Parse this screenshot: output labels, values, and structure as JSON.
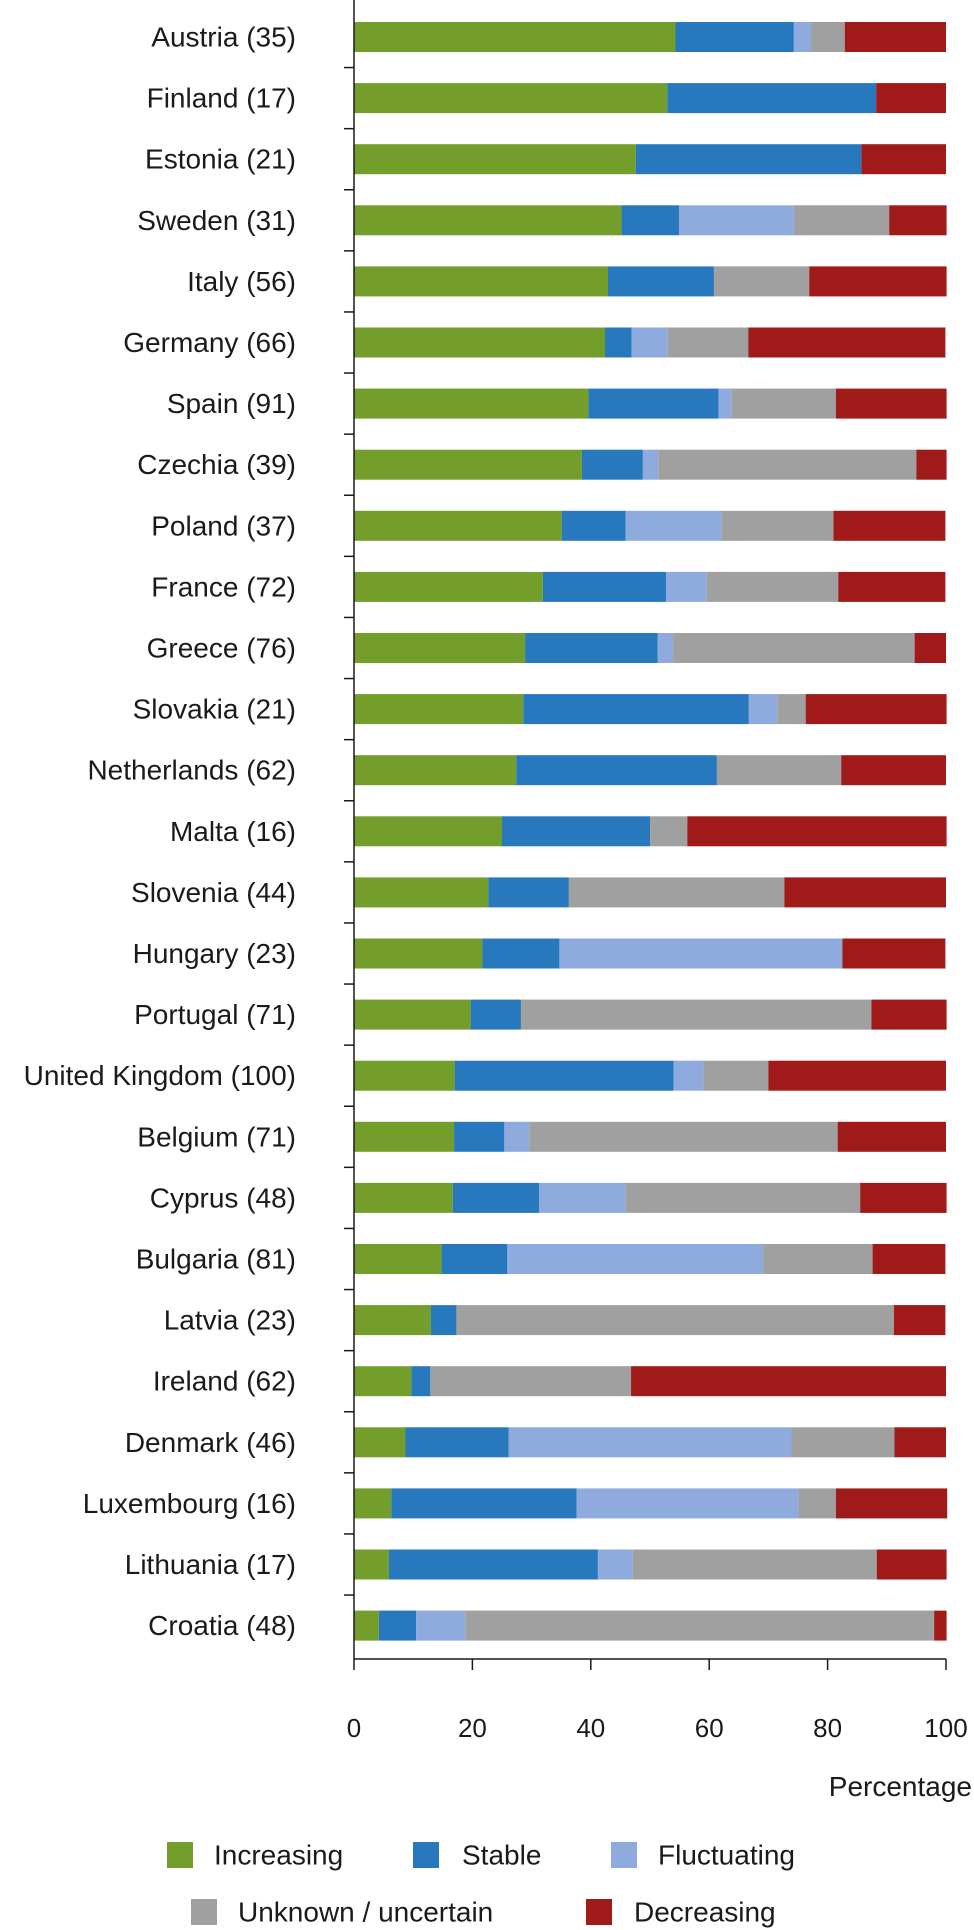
{
  "chart_data": {
    "type": "bar",
    "orientation": "horizontal",
    "stacked": true,
    "categories": [
      "Austria (35)",
      "Finland (17)",
      "Estonia (21)",
      "Sweden (31)",
      "Italy (56)",
      "Germany (66)",
      "Spain (91)",
      "Czechia (39)",
      "Poland (37)",
      "France (72)",
      "Greece (76)",
      "Slovakia (21)",
      "Netherlands (62)",
      "Malta (16)",
      "Slovenia (44)",
      "Hungary (23)",
      "Portugal (71)",
      "United Kingdom (100)",
      "Belgium (71)",
      "Cyprus (48)",
      "Bulgaria (81)",
      "Latvia (23)",
      "Ireland (62)",
      "Denmark (46)",
      "Luxembourg (16)",
      "Lithuania (17)",
      "Croatia (48)"
    ],
    "series": [
      {
        "name": "Increasing",
        "color": "#739E2B",
        "values": [
          54.3,
          52.9,
          47.6,
          45.2,
          42.9,
          42.4,
          39.6,
          38.5,
          35.1,
          31.9,
          28.9,
          28.6,
          27.4,
          25.0,
          22.7,
          21.7,
          19.7,
          17.0,
          16.9,
          16.7,
          14.8,
          13.0,
          9.7,
          8.7,
          6.3,
          5.9,
          4.2
        ]
      },
      {
        "name": "Stable",
        "color": "#2878BE",
        "values": [
          20.0,
          35.3,
          38.1,
          9.7,
          17.9,
          4.5,
          22.0,
          10.3,
          10.8,
          20.8,
          22.4,
          38.1,
          33.9,
          25.0,
          13.6,
          13.0,
          8.5,
          37.0,
          8.5,
          14.6,
          11.1,
          4.3,
          3.2,
          17.4,
          31.3,
          35.3,
          6.3
        ]
      },
      {
        "name": "Fluctuating",
        "color": "#8FAADC",
        "values": [
          2.9,
          0.0,
          0.0,
          19.4,
          0.0,
          6.1,
          2.2,
          2.6,
          16.2,
          6.9,
          2.6,
          4.8,
          0.0,
          0.0,
          0.0,
          47.8,
          0.0,
          5.0,
          4.2,
          14.6,
          43.2,
          0.0,
          0.0,
          47.8,
          37.5,
          5.9,
          8.3
        ]
      },
      {
        "name": "Unknown / uncertain",
        "color": "#A0A0A0",
        "values": [
          5.7,
          0.0,
          0.0,
          16.1,
          16.1,
          13.6,
          17.6,
          43.6,
          18.9,
          22.2,
          40.8,
          4.8,
          21.0,
          6.3,
          36.4,
          0.0,
          59.2,
          11.0,
          52.1,
          39.6,
          18.5,
          73.9,
          33.9,
          17.4,
          6.3,
          41.2,
          79.2
        ]
      },
      {
        "name": "Decreasing",
        "color": "#A01A1A",
        "values": [
          17.1,
          11.8,
          14.3,
          9.7,
          23.2,
          33.3,
          18.7,
          5.1,
          18.9,
          18.1,
          5.3,
          23.8,
          17.7,
          43.8,
          27.3,
          17.4,
          12.7,
          30.0,
          18.3,
          14.6,
          12.3,
          8.7,
          53.2,
          8.7,
          18.8,
          11.8,
          2.1
        ]
      }
    ],
    "xlim": [
      0,
      100
    ],
    "xticks": [
      "0",
      "20",
      "40",
      "60",
      "80",
      "100"
    ],
    "xlabel": "Percentage",
    "ylabel": "",
    "title": "",
    "grid": false,
    "legend": {
      "position": "bottom",
      "rows": [
        [
          "Increasing",
          "Stable",
          "Fluctuating"
        ],
        [
          "Unknown / uncertain",
          "Decreasing"
        ]
      ]
    }
  }
}
